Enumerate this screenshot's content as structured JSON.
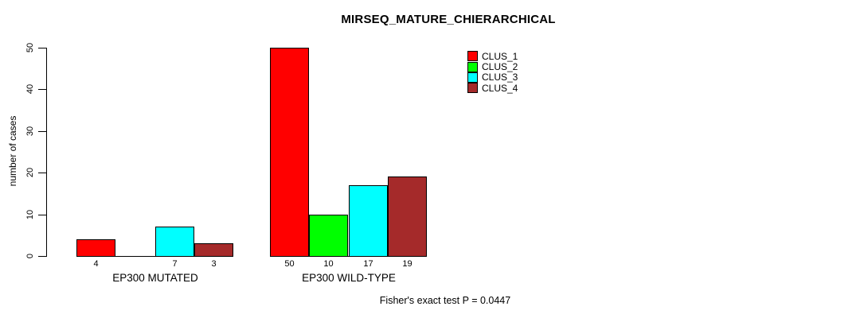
{
  "chart_data": {
    "type": "bar",
    "title": "MIRSEQ_MATURE_CHIERARCHICAL",
    "ylabel": "number of cases",
    "xlabel": "",
    "ylim": [
      0,
      50
    ],
    "yticks": [
      0,
      10,
      20,
      30,
      40,
      50
    ],
    "categories": [
      "EP300 MUTATED",
      "EP300 WILD-TYPE"
    ],
    "series": [
      {
        "name": "CLUS_1",
        "color": "#ff0000",
        "values": [
          4,
          50
        ]
      },
      {
        "name": "CLUS_2",
        "color": "#00ff00",
        "values": [
          0,
          10
        ]
      },
      {
        "name": "CLUS_3",
        "color": "#00ffff",
        "values": [
          7,
          17
        ]
      },
      {
        "name": "CLUS_4",
        "color": "#a52a2a",
        "values": [
          3,
          19
        ]
      }
    ],
    "bar_value_labels": [
      [
        "4",
        "",
        "7",
        "3"
      ],
      [
        "50",
        "10",
        "17",
        "19"
      ]
    ],
    "legend_position": "top-right",
    "grid": false,
    "annotation": "Fisher's exact test P = 0.0447"
  }
}
